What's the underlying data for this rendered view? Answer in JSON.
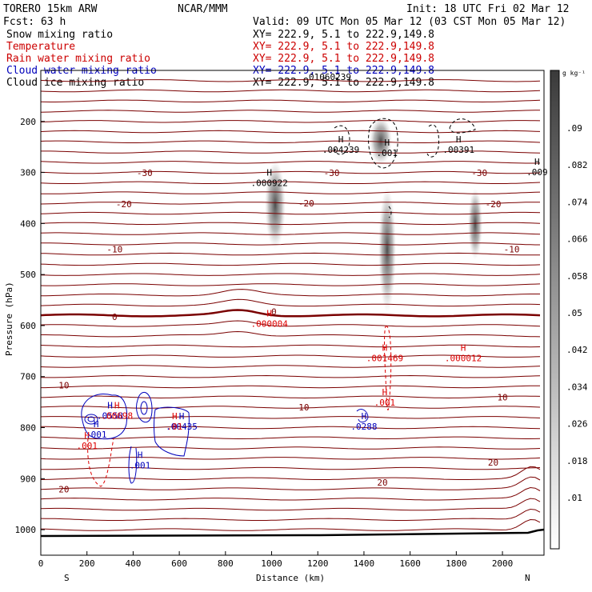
{
  "header": {
    "model": "TORERO  15km ARW",
    "org": "NCAR/MMM",
    "init": "Init: 18 UTC Fri 02 Mar 12",
    "fcst": "Fcst:    63 h",
    "valid": "Valid: 09 UTC Mon 05 Mar 12 (03 CST Mon 05 Mar 12)",
    "overlap_label": "01060239"
  },
  "legend_rows": [
    {
      "field": "Snow mixing ratio",
      "xy": "XY= 222.9,  5.1 to 222.9,149.8",
      "color": "#000000"
    },
    {
      "field": "Temperature",
      "xy": "XY= 222.9,  5.1 to 222.9,149.8",
      "color": "#cc0000"
    },
    {
      "field": "Rain water mixing ratio",
      "xy": "XY= 222.9,  5.1 to 222.9,149.8",
      "color": "#cc0000"
    },
    {
      "field": "Cloud water mixing ratio",
      "xy": "XY= 222.9,  5.1 to 222.9,149.8",
      "color": "#0000bb"
    },
    {
      "field": "Cloud ice mixing ratio",
      "xy": "XY= 222.9,  5.1 to 222.9,149.8",
      "color": "#000000"
    }
  ],
  "colors": {
    "temperature": "#7a0000",
    "rain": "#dd0000",
    "cloud_water": "#0000bb",
    "ice": "#000000"
  },
  "chart_data": {
    "type": "cross-section",
    "xlabel": "Distance (km)",
    "ylabel": "Pressure (hPa)",
    "xlim": [
      0,
      2180
    ],
    "ylim": [
      1050,
      100
    ],
    "x_ticks": [
      "0",
      "200",
      "400",
      "600",
      "800",
      "1000",
      "1200",
      "1400",
      "1600",
      "1800",
      "2000"
    ],
    "y_ticks": [
      "200",
      "300",
      "400",
      "500",
      "600",
      "700",
      "800",
      "900",
      "1000"
    ],
    "end_labels": {
      "left": "S",
      "right": "N"
    },
    "colorbar": {
      "unit": "g kg⁻¹",
      "labels": [
        ".09",
        ".082",
        ".074",
        ".066",
        ".058",
        ".05",
        ".042",
        ".034",
        ".026",
        ".018",
        ".01"
      ]
    },
    "temperature_labels": [
      {
        "text": "-30",
        "x": 450,
        "p": 301
      },
      {
        "text": "-30",
        "x": 1260,
        "p": 301
      },
      {
        "text": "-30",
        "x": 1900,
        "p": 301
      },
      {
        "text": "-20",
        "x": 360,
        "p": 362
      },
      {
        "text": "-20",
        "x": 1150,
        "p": 360
      },
      {
        "text": "-20",
        "x": 1960,
        "p": 362
      },
      {
        "text": "-10",
        "x": 320,
        "p": 450
      },
      {
        "text": "-10",
        "x": 2040,
        "p": 450
      },
      {
        "text": "0",
        "x": 320,
        "p": 583
      },
      {
        "text": "0",
        "x": 1010,
        "p": 573
      },
      {
        "text": "10",
        "x": 100,
        "p": 717
      },
      {
        "text": "10",
        "x": 1140,
        "p": 760
      },
      {
        "text": "10",
        "x": 2000,
        "p": 740
      },
      {
        "text": "20",
        "x": 100,
        "p": 921
      },
      {
        "text": "20",
        "x": 1480,
        "p": 907
      },
      {
        "text": "20",
        "x": 1960,
        "p": 868
      }
    ],
    "highs": [
      {
        "text": ".000922",
        "x": 990,
        "p": 322,
        "color": "ice"
      },
      {
        "text": ".004239",
        "x": 1300,
        "p": 257,
        "color": "ice"
      },
      {
        "text": ".001",
        "x": 1500,
        "p": 263,
        "color": "ice"
      },
      {
        "text": ".00391",
        "x": 1810,
        "p": 257,
        "color": "ice"
      },
      {
        "text": ".009",
        "x": 2150,
        "p": 301,
        "color": "ice"
      },
      {
        "text": ".000004",
        "x": 990,
        "p": 598,
        "color": "rain"
      },
      {
        "text": ".001469",
        "x": 1490,
        "p": 665,
        "color": "rain"
      },
      {
        "text": ".000012",
        "x": 1830,
        "p": 665,
        "color": "rain"
      },
      {
        "text": ".001",
        "x": 1490,
        "p": 752,
        "color": "rain"
      },
      {
        "text": ".001",
        "x": 200,
        "p": 837,
        "color": "rain"
      },
      {
        "text": ".0288",
        "x": 1400,
        "p": 799,
        "color": "cloud_water"
      },
      {
        "text": ".001",
        "x": 240,
        "p": 815,
        "color": "cloud_water"
      },
      {
        "text": ".001",
        "x": 430,
        "p": 875,
        "color": "cloud_water"
      },
      {
        "text": ".0558",
        "x": 300,
        "p": 778,
        "color": "cloud_water"
      },
      {
        "text": ".00698",
        "x": 330,
        "p": 778,
        "color": "rain"
      },
      {
        "text": ".00435",
        "x": 610,
        "p": 799,
        "color": "cloud_water"
      },
      {
        "text": ".01",
        "x": 580,
        "p": 799,
        "color": "rain"
      }
    ]
  }
}
